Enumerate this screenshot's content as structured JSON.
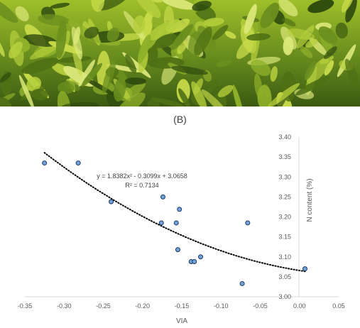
{
  "panel_label": "(B)",
  "photo": {
    "subject": "tea-leaves-photo",
    "colors": {
      "dark": "#2e4a0e",
      "mid": "#6b8f1e",
      "light": "#c9dc4a"
    }
  },
  "chart_data": {
    "type": "scatter",
    "xlabel": "VIA",
    "ylabel": "N content (%)",
    "xlim": [
      -0.35,
      0.05
    ],
    "ylim": [
      3.0,
      3.4
    ],
    "xticks": [
      "-0.35",
      "-0.30",
      "-0.25",
      "-0.20",
      "-0.15",
      "-0.10",
      "-0.05",
      "0.00",
      "0.05"
    ],
    "yticks": [
      "3.00",
      "3.05",
      "3.10",
      "3.15",
      "3.20",
      "3.25",
      "3.30",
      "3.35",
      "3.40"
    ],
    "xtick_values": [
      -0.35,
      -0.3,
      -0.25,
      -0.2,
      -0.15,
      -0.1,
      -0.05,
      0.0,
      0.05
    ],
    "ytick_values": [
      3.0,
      3.05,
      3.1,
      3.15,
      3.2,
      3.25,
      3.3,
      3.35,
      3.4
    ],
    "grid": false,
    "y_axis_side": "right",
    "points": [
      {
        "x": -0.325,
        "y": 3.335
      },
      {
        "x": -0.282,
        "y": 3.335
      },
      {
        "x": -0.24,
        "y": 3.238
      },
      {
        "x": -0.174,
        "y": 3.25
      },
      {
        "x": -0.176,
        "y": 3.185
      },
      {
        "x": -0.153,
        "y": 3.219
      },
      {
        "x": -0.157,
        "y": 3.185
      },
      {
        "x": -0.155,
        "y": 3.118
      },
      {
        "x": -0.138,
        "y": 3.088
      },
      {
        "x": -0.134,
        "y": 3.088
      },
      {
        "x": -0.126,
        "y": 3.1
      },
      {
        "x": -0.073,
        "y": 3.033
      },
      {
        "x": -0.066,
        "y": 3.185
      },
      {
        "x": 0.007,
        "y": 3.07
      }
    ],
    "trendline": {
      "type": "polynomial",
      "a": 1.8382,
      "b": -0.3099,
      "c": 3.0658,
      "x_range": [
        -0.325,
        0.007
      ],
      "style": "dotted",
      "color": "#000000",
      "equation_label": "y = 1.8382x² - 0.3099x + 3.0658",
      "r2_label": "R² = 0.7134"
    },
    "marker": {
      "fill": "#6fa3d9",
      "stroke": "#1f3864"
    }
  }
}
